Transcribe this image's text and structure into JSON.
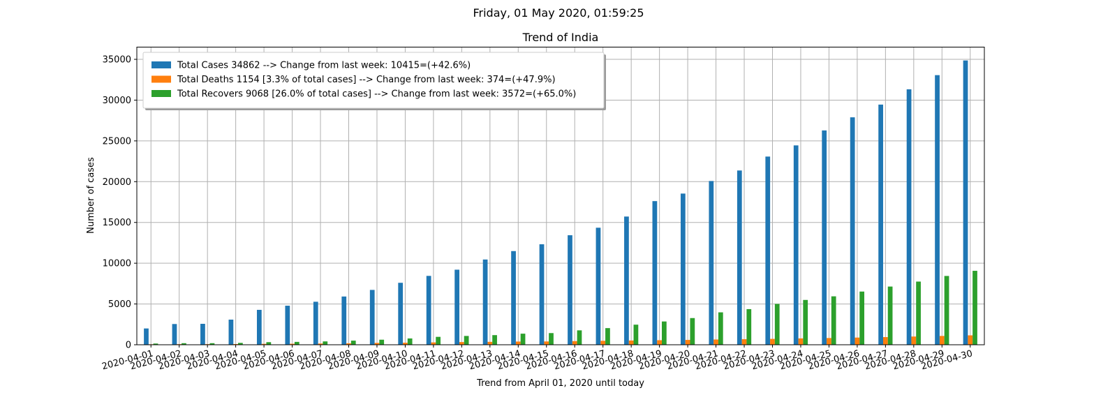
{
  "header": {
    "suptitle": "Friday, 01 May 2020, 01:59:25"
  },
  "chart_data": {
    "type": "bar",
    "title": "Trend of India",
    "xlabel": "Trend from April 01, 2020 until today",
    "ylabel": "Number of cases",
    "ylim": [
      0,
      36500
    ],
    "yticks": [
      0,
      5000,
      10000,
      15000,
      20000,
      25000,
      30000,
      35000
    ],
    "grid": true,
    "legend_position": "top-left",
    "categories": [
      "2020-04-01",
      "2020-04-02",
      "2020-04-03",
      "2020-04-04",
      "2020-04-05",
      "2020-04-06",
      "2020-04-07",
      "2020-04-08",
      "2020-04-09",
      "2020-04-10",
      "2020-04-11",
      "2020-04-12",
      "2020-04-13",
      "2020-04-14",
      "2020-04-15",
      "2020-04-16",
      "2020-04-17",
      "2020-04-18",
      "2020-04-19",
      "2020-04-20",
      "2020-04-21",
      "2020-04-22",
      "2020-04-23",
      "2020-04-24",
      "2020-04-25",
      "2020-04-26",
      "2020-04-27",
      "2020-04-28",
      "2020-04-29",
      "2020-04-30"
    ],
    "series": [
      {
        "name": "Total Cases 34862 --> Change from last week: 10415=(+42.6%)",
        "color": "#1f77b4",
        "values": [
          1998,
          2543,
          2567,
          3082,
          4281,
          4789,
          5274,
          5916,
          6725,
          7598,
          8446,
          9205,
          10453,
          11487,
          12322,
          13430,
          14352,
          15722,
          17615,
          18539,
          20080,
          21370,
          23077,
          24447,
          26283,
          27890,
          29451,
          31324,
          33062,
          34862
        ]
      },
      {
        "name": "Total Deaths 1154 [3.3% of total cases] --> Change from last week: 374=(+47.9%)",
        "color": "#ff7f0e",
        "values": [
          58,
          72,
          72,
          86,
          111,
          124,
          149,
          178,
          226,
          249,
          288,
          331,
          358,
          393,
          405,
          448,
          486,
          521,
          559,
          592,
          645,
          681,
          721,
          780,
          825,
          881,
          939,
          1008,
          1079,
          1154
        ]
      },
      {
        "name": "Total Recovers 9068 [26.0% of total cases] --> Change from last week: 3572=(+65.0%)",
        "color": "#2ca02c",
        "values": [
          148,
          191,
          192,
          229,
          319,
          353,
          411,
          506,
          620,
          774,
          969,
          1080,
          1181,
          1359,
          1432,
          1768,
          2041,
          2463,
          2854,
          3273,
          3975,
          4370,
          5012,
          5496,
          5939,
          6523,
          7137,
          7747,
          8437,
          9068
        ]
      }
    ]
  }
}
